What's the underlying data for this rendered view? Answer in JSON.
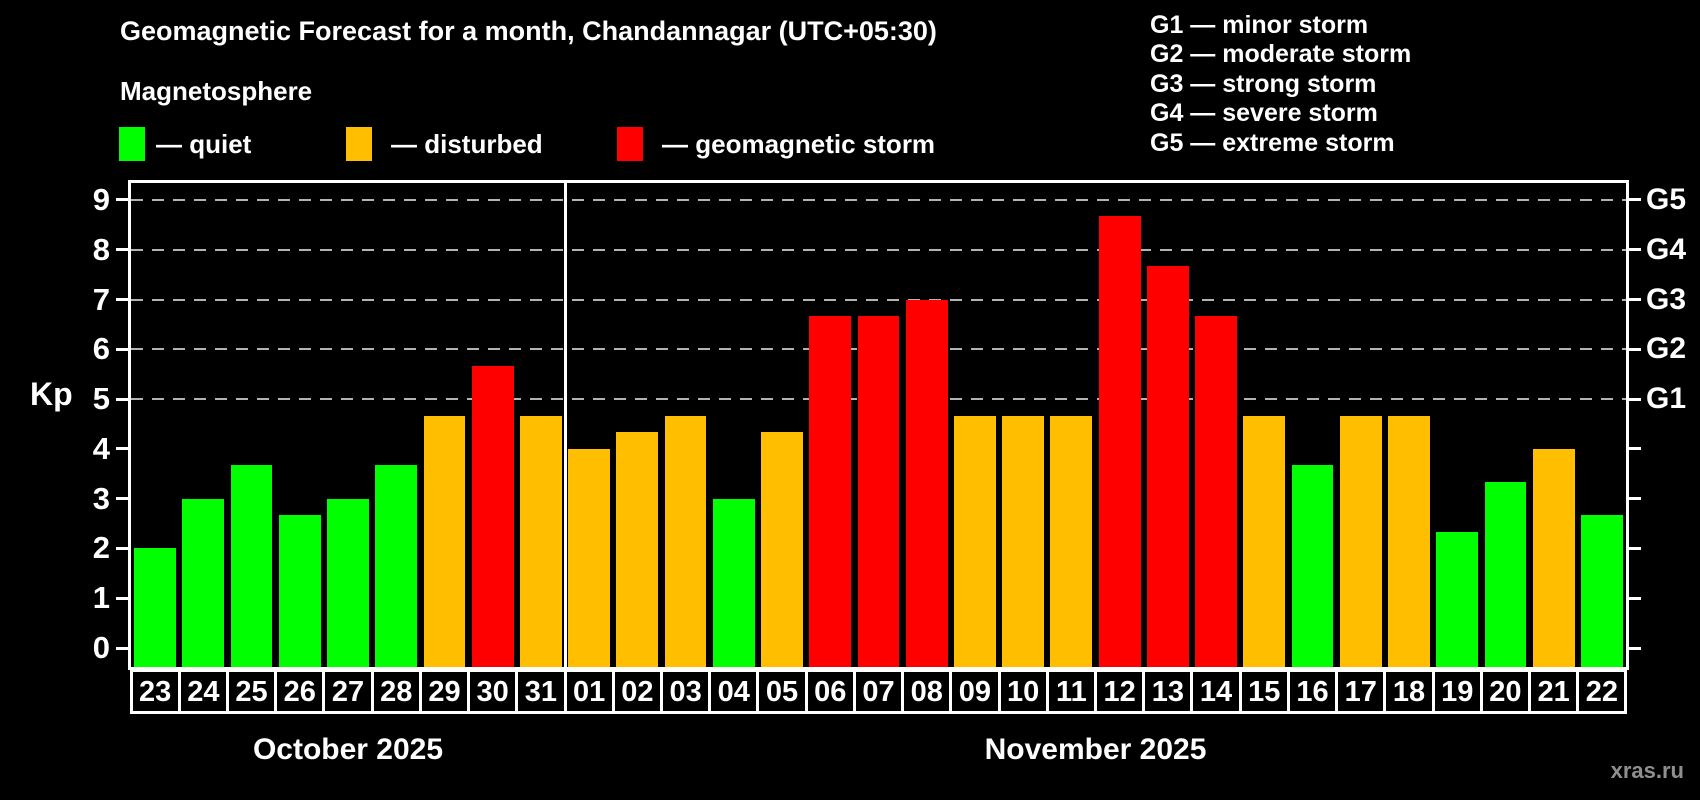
{
  "watermark": "xras.ru",
  "legend": {
    "items": [
      {
        "name": "quiet",
        "label": "— quiet",
        "color": "#00ff00"
      },
      {
        "name": "disturbed",
        "label": "— disturbed",
        "color": "#ffbe00"
      },
      {
        "name": "geomagnetic-storm",
        "label": "— geomagnetic storm",
        "color": "#ff0000"
      }
    ]
  },
  "storm_scale_legend": {
    "lines": [
      "G1 — minor storm",
      "G2 — moderate storm",
      "G3 — strong storm",
      "G4 — severe storm",
      "G5 — extreme storm"
    ]
  },
  "chart_data": {
    "type": "bar",
    "title": "Geomagnetic Forecast for a month, Chandannagar (UTC+05:30)",
    "subtitle": "Magnetosphere",
    "ylabel": "Kp",
    "ylim": [
      0,
      9.33
    ],
    "yticks": [
      0,
      1,
      2,
      3,
      4,
      5,
      6,
      7,
      8,
      9
    ],
    "gridlines_kp": [
      5,
      6,
      7,
      8,
      9
    ],
    "grid": "horizontal dashed lines at storm levels G1–G5 only",
    "legend_position": "top-left",
    "right_axis": {
      "labels": [
        "G1",
        "G2",
        "G3",
        "G4",
        "G5"
      ],
      "at_kp": [
        5,
        6,
        7,
        8,
        9
      ]
    },
    "status_colors": {
      "quiet": "#00ff00",
      "disturbed": "#ffbe00",
      "storm": "#ff0000"
    },
    "months": [
      {
        "label": "October 2025",
        "days": [
          "23",
          "24",
          "25",
          "26",
          "27",
          "28",
          "29",
          "30",
          "31"
        ],
        "values": [
          2,
          3,
          3.67,
          2.67,
          3,
          3.67,
          4.67,
          5.67,
          4.67
        ],
        "status": [
          "quiet",
          "quiet",
          "quiet",
          "quiet",
          "quiet",
          "quiet",
          "disturbed",
          "storm",
          "disturbed"
        ]
      },
      {
        "label": "November 2025",
        "days": [
          "01",
          "02",
          "03",
          "04",
          "05",
          "06",
          "07",
          "08",
          "09",
          "10",
          "11",
          "12",
          "13",
          "14",
          "15",
          "16",
          "17",
          "18",
          "19",
          "20",
          "21",
          "22"
        ],
        "values": [
          4,
          4.33,
          4.67,
          3,
          4.33,
          6.67,
          6.67,
          7,
          4.67,
          4.67,
          4.67,
          8.67,
          7.67,
          6.67,
          4.67,
          3.67,
          4.67,
          4.67,
          2.33,
          3.33,
          4,
          2.67
        ],
        "status": [
          "disturbed",
          "disturbed",
          "disturbed",
          "quiet",
          "disturbed",
          "storm",
          "storm",
          "storm",
          "disturbed",
          "disturbed",
          "disturbed",
          "storm",
          "storm",
          "storm",
          "disturbed",
          "quiet",
          "disturbed",
          "disturbed",
          "quiet",
          "quiet",
          "disturbed",
          "quiet"
        ]
      }
    ]
  }
}
